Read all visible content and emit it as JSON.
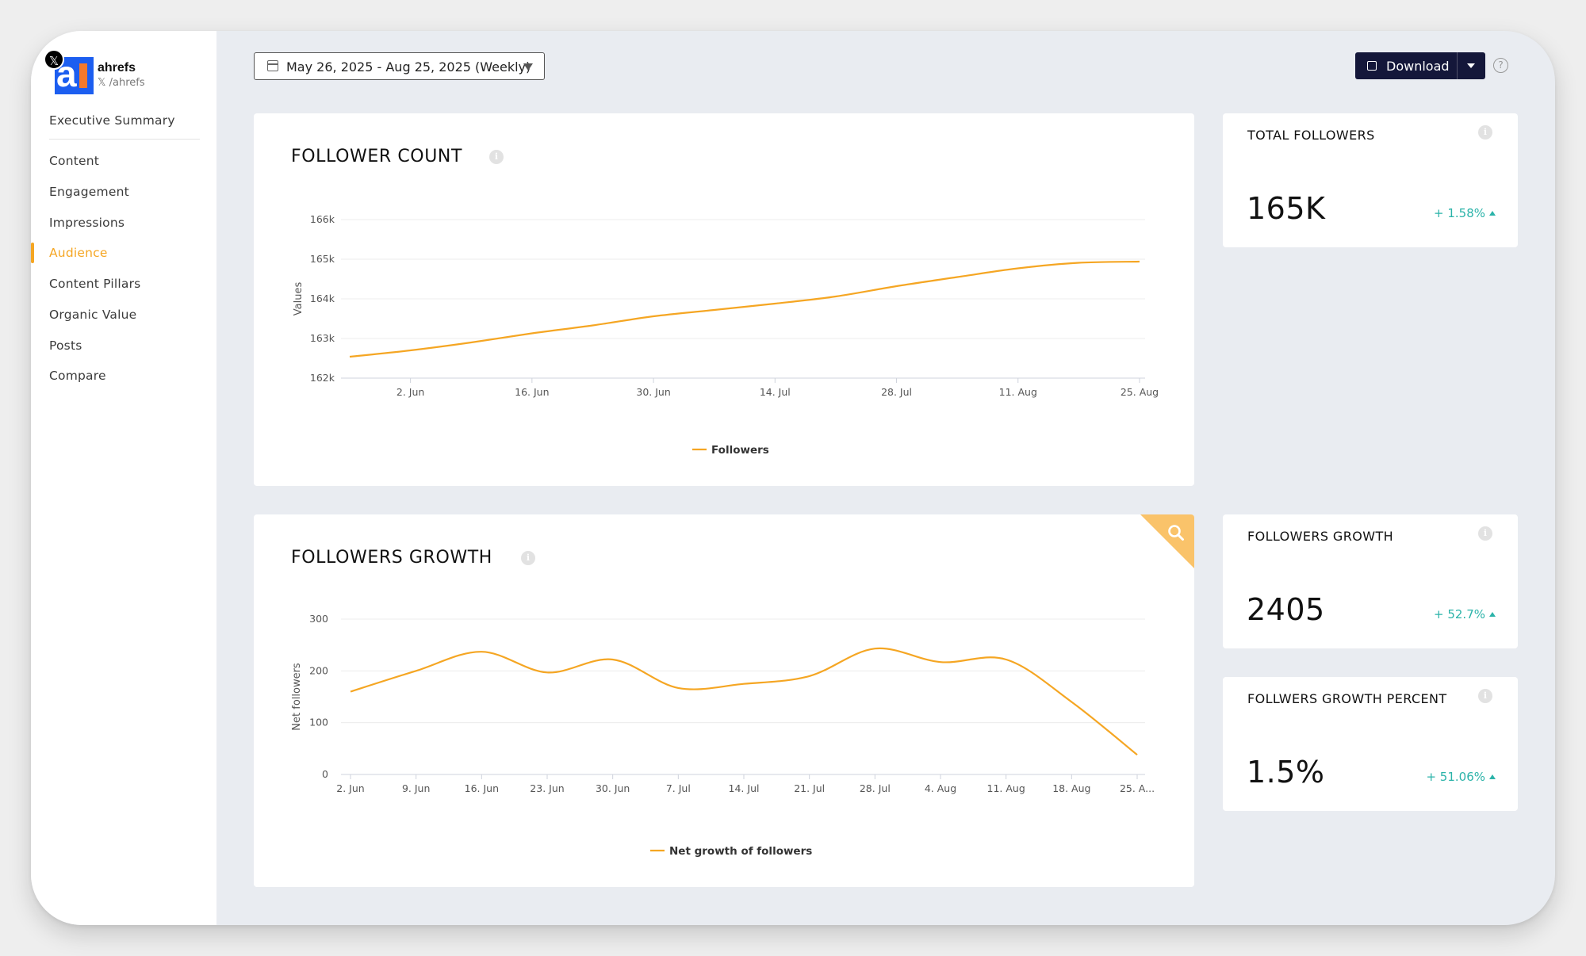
{
  "profile": {
    "name": "ahrefs",
    "handle": "𝕏 /ahrefs",
    "logo_letter": "a"
  },
  "nav": {
    "items": [
      {
        "label": "Executive Summary"
      },
      {
        "label": "Content"
      },
      {
        "label": "Engagement"
      },
      {
        "label": "Impressions"
      },
      {
        "label": "Audience",
        "active": true
      },
      {
        "label": "Content Pillars"
      },
      {
        "label": "Organic Value"
      },
      {
        "label": "Posts"
      },
      {
        "label": "Compare"
      }
    ]
  },
  "toolbar": {
    "date_range": "May 26, 2025 - Aug 25, 2025 (Weekly)",
    "download_label": "Download",
    "help_glyph": "?"
  },
  "colors": {
    "accent": "#f5a623",
    "positive": "#2bb3a9",
    "button": "#14173a"
  },
  "cards": {
    "follower_count": {
      "title": "FOLLOWER COUNT"
    },
    "followers_growth": {
      "title": "FOLLOWERS GROWTH"
    }
  },
  "kpis": {
    "total_followers": {
      "title": "TOTAL FOLLOWERS",
      "value": "165K",
      "change": "+ 1.58%"
    },
    "followers_growth": {
      "title": "FOLLOWERS GROWTH",
      "value": "2405",
      "change": "+ 52.7%"
    },
    "followers_growth_percent": {
      "title": "FOLLWERS GROWTH PERCENT",
      "value": "1.5%",
      "change": "+ 51.06%"
    }
  },
  "chart_data": [
    {
      "type": "line",
      "title": "FOLLOWER COUNT",
      "ylabel": "Values",
      "xlabel": "",
      "ylim": [
        162000,
        166000
      ],
      "y_ticks": [
        "162k",
        "163k",
        "164k",
        "165k",
        "166k"
      ],
      "y_tick_values": [
        162000,
        163000,
        164000,
        165000,
        166000
      ],
      "x_ticks": [
        "2. Jun",
        "16. Jun",
        "30. Jun",
        "14. Jul",
        "28. Jul",
        "11. Aug",
        "25. Aug"
      ],
      "x": [
        "2025-05-26",
        "2025-06-02",
        "2025-06-09",
        "2025-06-16",
        "2025-06-23",
        "2025-06-30",
        "2025-07-07",
        "2025-07-14",
        "2025-07-21",
        "2025-07-28",
        "2025-08-04",
        "2025-08-11",
        "2025-08-18",
        "2025-08-25"
      ],
      "series": [
        {
          "name": "Followers",
          "color": "#f5a623",
          "values": [
            162540,
            162700,
            162900,
            163130,
            163330,
            163560,
            163720,
            163880,
            164060,
            164320,
            164550,
            164770,
            164910,
            164940
          ]
        }
      ],
      "legend": "bottom-center",
      "grid": true
    },
    {
      "type": "line",
      "title": "FOLLOWERS GROWTH",
      "ylabel": "Net followers",
      "xlabel": "",
      "ylim": [
        0,
        300
      ],
      "y_ticks": [
        "0",
        "100",
        "200",
        "300"
      ],
      "y_tick_values": [
        0,
        100,
        200,
        300
      ],
      "x_ticks": [
        "2. Jun",
        "9. Jun",
        "16. Jun",
        "23. Jun",
        "30. Jun",
        "7. Jul",
        "14. Jul",
        "21. Jul",
        "28. Jul",
        "4. Aug",
        "11. Aug",
        "18. Aug",
        "25. A..."
      ],
      "x": [
        "2025-06-02",
        "2025-06-09",
        "2025-06-16",
        "2025-06-23",
        "2025-06-30",
        "2025-07-07",
        "2025-07-14",
        "2025-07-21",
        "2025-07-28",
        "2025-08-04",
        "2025-08-11",
        "2025-08-18",
        "2025-08-25"
      ],
      "series": [
        {
          "name": "Net growth of followers",
          "color": "#f5a623",
          "values": [
            160,
            200,
            237,
            197,
            222,
            167,
            175,
            190,
            243,
            217,
            222,
            140,
            38
          ]
        }
      ],
      "legend": "bottom-center",
      "grid": true
    }
  ]
}
